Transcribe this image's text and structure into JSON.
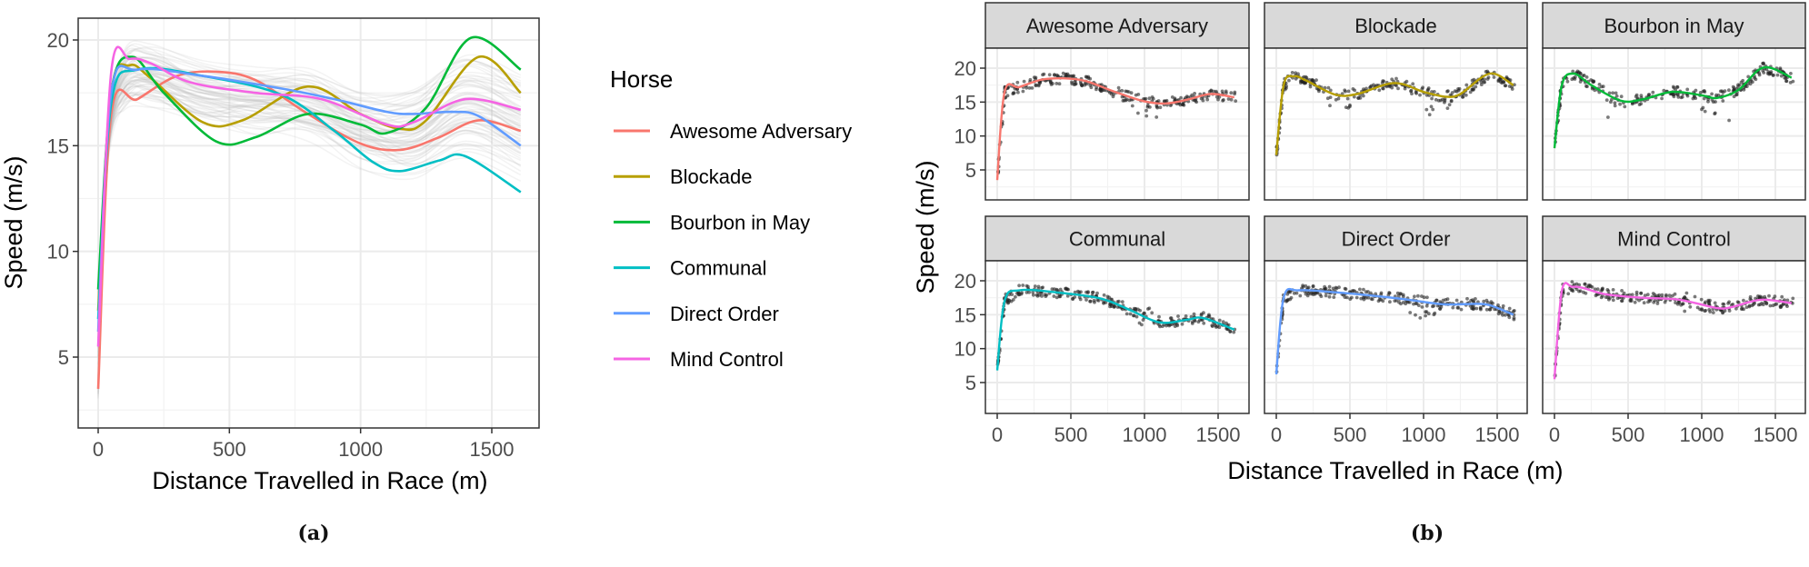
{
  "figure": {
    "caption_a": "(a)",
    "caption_b": "(b)"
  },
  "colors": {
    "Awesome Adversary": "#F8766D",
    "Blockade": "#B79F00",
    "Bourbon in May": "#00BA38",
    "Communal": "#00BFC4",
    "Direct Order": "#619CFF",
    "Mind Control": "#F564E3",
    "points": "#222222",
    "grid": "#EBEBEB",
    "strip_bg": "#D9D9D9",
    "panel_border": "#333333",
    "background_curves": "#BDBDBD"
  },
  "chart_data": [
    {
      "id": "a",
      "type": "line",
      "title": "",
      "xlabel": "Distance Travelled in Race (m)",
      "ylabel": "Speed (m/s)",
      "xlim": [
        -80,
        1700
      ],
      "ylim": [
        1.8,
        21
      ],
      "x_ticks": [
        0,
        500,
        1000,
        1500
      ],
      "x_tick_labels": [
        "0",
        "500",
        "1000",
        "1500"
      ],
      "y_ticks": [
        5,
        10,
        15,
        20
      ],
      "y_tick_labels": [
        "5",
        "10",
        "15",
        "20"
      ],
      "grid": true,
      "background": "many faint gray curves (all other horses) behind highlighted series",
      "legend": {
        "title": "Horse",
        "position": "right",
        "entries": [
          "Awesome Adversary",
          "Blockade",
          "Bourbon in May",
          "Communal",
          "Direct Order",
          "Mind Control"
        ]
      },
      "series": [
        {
          "name": "Awesome Adversary",
          "x": [
            0,
            50,
            150,
            300,
            450,
            600,
            800,
            1000,
            1150,
            1300,
            1450,
            1610
          ],
          "y": [
            3.5,
            16.5,
            17.2,
            18.3,
            18.5,
            18.1,
            16.5,
            15.1,
            14.8,
            15.4,
            16.2,
            15.7
          ]
        },
        {
          "name": "Blockade",
          "x": [
            0,
            50,
            120,
            200,
            400,
            550,
            800,
            1000,
            1150,
            1250,
            1450,
            1610
          ],
          "y": [
            7.2,
            17.5,
            18.8,
            18.2,
            16.1,
            16.2,
            17.8,
            16.5,
            15.8,
            16.2,
            19.2,
            17.5
          ]
        },
        {
          "name": "Bourbon in May",
          "x": [
            0,
            50,
            130,
            250,
            450,
            600,
            800,
            1000,
            1100,
            1250,
            1420,
            1610
          ],
          "y": [
            8.2,
            17.5,
            19.2,
            17.5,
            15.2,
            15.4,
            16.5,
            16.0,
            15.6,
            16.8,
            20.1,
            18.6
          ]
        },
        {
          "name": "Communal",
          "x": [
            0,
            50,
            150,
            400,
            700,
            900,
            1050,
            1150,
            1300,
            1400,
            1610
          ],
          "y": [
            6.8,
            17.0,
            18.6,
            18.3,
            17.4,
            15.7,
            14.2,
            13.8,
            14.3,
            14.5,
            12.8
          ]
        },
        {
          "name": "Direct Order",
          "x": [
            0,
            50,
            150,
            400,
            700,
            900,
            1100,
            1200,
            1350,
            1450,
            1610
          ],
          "y": [
            6.2,
            17.5,
            18.6,
            18.3,
            17.7,
            17.2,
            16.6,
            16.5,
            16.6,
            16.4,
            15.0
          ]
        },
        {
          "name": "Mind Control",
          "x": [
            0,
            50,
            120,
            200,
            350,
            600,
            850,
            1100,
            1200,
            1400,
            1610
          ],
          "y": [
            5.5,
            18.5,
            19.1,
            18.9,
            18.0,
            17.5,
            17.2,
            16.0,
            16.1,
            17.2,
            16.7
          ]
        }
      ]
    },
    {
      "id": "b",
      "type": "scatter",
      "layout": "facet grid 2 rows x 3 columns, points with smoothed line per horse",
      "xlabel": "Distance Travelled in Race (m)",
      "ylabel": "Speed (m/s)",
      "xlim": [
        -80,
        1700
      ],
      "ylim": [
        1.5,
        22.5
      ],
      "x_ticks": [
        0,
        500,
        1000,
        1500
      ],
      "x_tick_labels": [
        "0",
        "500",
        "1000",
        "1500"
      ],
      "y_ticks": [
        5,
        10,
        15,
        20
      ],
      "y_tick_labels": [
        "5",
        "10",
        "15",
        "20"
      ],
      "grid": true,
      "facets": [
        {
          "title": "Awesome Adversary",
          "smooth_x": [
            0,
            50,
            150,
            300,
            450,
            600,
            800,
            1000,
            1150,
            1300,
            1450,
            1610
          ],
          "smooth_y": [
            3.5,
            16.5,
            17.2,
            18.3,
            18.5,
            18.1,
            16.5,
            15.1,
            14.8,
            15.4,
            16.2,
            15.7
          ],
          "dip_regions": [
            [
              850,
              1150,
              12.5
            ]
          ]
        },
        {
          "title": "Blockade",
          "smooth_x": [
            0,
            50,
            120,
            200,
            400,
            550,
            800,
            1000,
            1150,
            1250,
            1450,
            1610
          ],
          "smooth_y": [
            7.2,
            17.5,
            18.8,
            18.2,
            16.1,
            16.2,
            17.8,
            16.5,
            15.8,
            16.2,
            19.2,
            17.5
          ],
          "dip_regions": [
            [
              350,
              550,
              13.0
            ],
            [
              1000,
              1200,
              12.5
            ]
          ]
        },
        {
          "title": "Bourbon in May",
          "smooth_x": [
            0,
            50,
            130,
            250,
            450,
            600,
            800,
            1000,
            1100,
            1250,
            1420,
            1610
          ],
          "smooth_y": [
            8.2,
            17.5,
            19.2,
            17.5,
            15.2,
            15.4,
            16.5,
            16.0,
            15.6,
            16.8,
            20.1,
            18.6
          ],
          "dip_regions": [
            [
              350,
              500,
              12.5
            ],
            [
              1000,
              1200,
              11.5
            ]
          ]
        },
        {
          "title": "Communal",
          "smooth_x": [
            0,
            50,
            150,
            400,
            700,
            900,
            1050,
            1150,
            1300,
            1400,
            1610
          ],
          "smooth_y": [
            6.8,
            17.0,
            18.6,
            18.3,
            17.4,
            15.7,
            14.2,
            13.8,
            14.3,
            14.5,
            12.8
          ],
          "dip_regions": [
            [
              950,
              1100,
              13.0
            ]
          ]
        },
        {
          "title": "Direct Order",
          "smooth_x": [
            0,
            50,
            150,
            400,
            700,
            900,
            1100,
            1200,
            1350,
            1450,
            1610
          ],
          "smooth_y": [
            6.2,
            17.5,
            18.6,
            18.3,
            17.7,
            17.2,
            16.6,
            16.5,
            16.6,
            16.4,
            15.0
          ],
          "dip_regions": [
            [
              850,
              1100,
              14.5
            ]
          ]
        },
        {
          "title": "Mind Control",
          "smooth_x": [
            0,
            50,
            120,
            200,
            350,
            600,
            850,
            1100,
            1200,
            1400,
            1610
          ],
          "smooth_y": [
            5.5,
            18.5,
            19.1,
            18.9,
            18.0,
            17.5,
            17.2,
            16.0,
            16.1,
            17.2,
            16.7
          ],
          "dip_regions": [
            [
              850,
              1100,
              15.5
            ]
          ]
        }
      ]
    }
  ]
}
